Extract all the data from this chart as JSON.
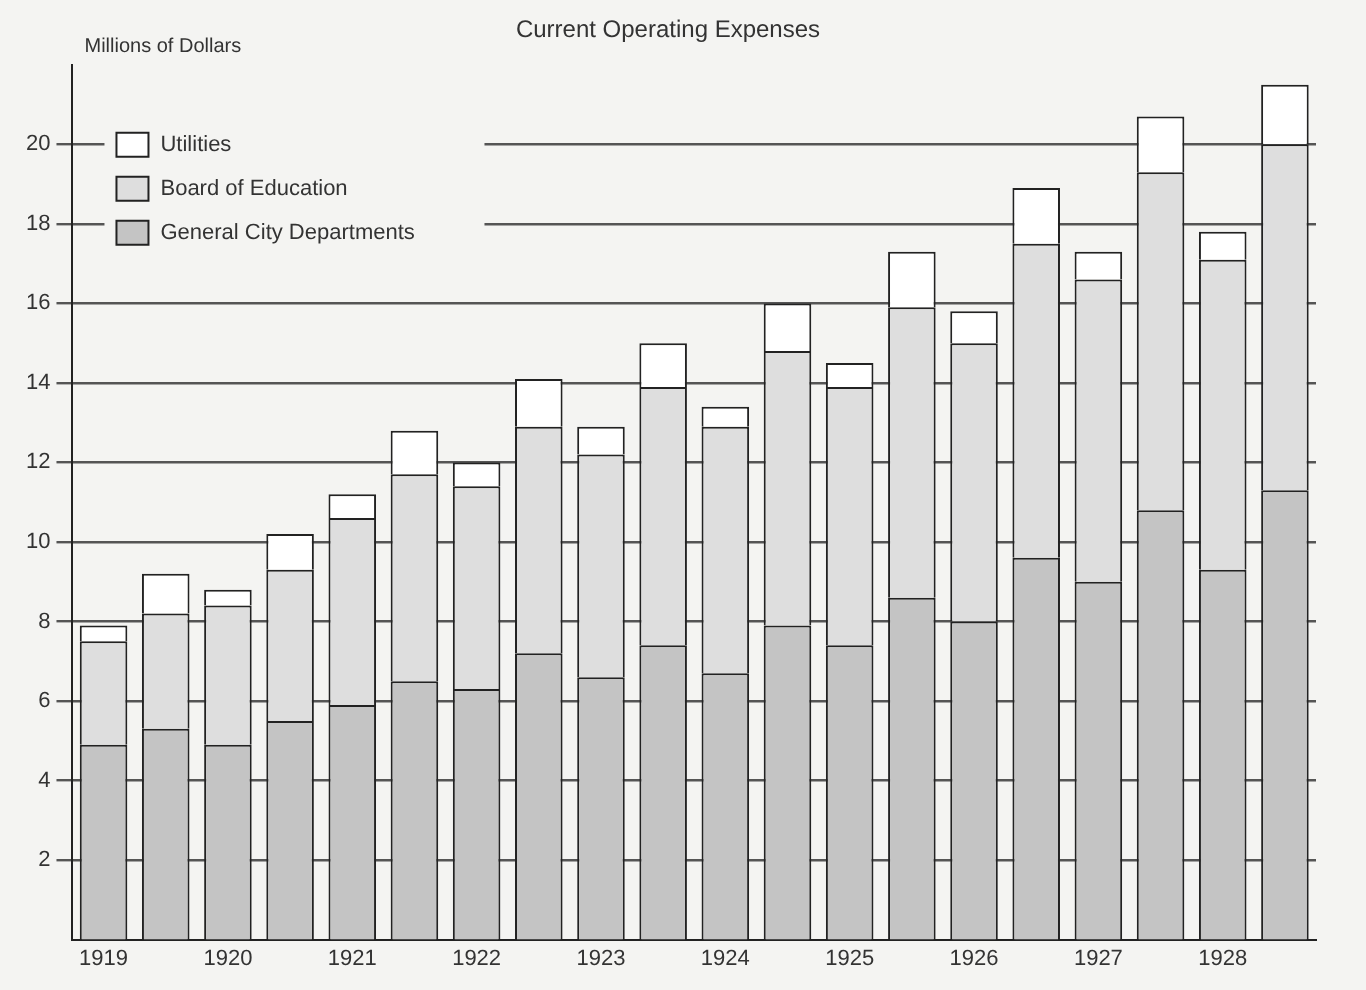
{
  "chart_data": {
    "type": "bar",
    "title": "Current Operating Expenses",
    "ylabel": "Millions of Dollars",
    "categories": [
      "1919",
      null,
      "1920",
      null,
      "1921",
      null,
      "1922",
      null,
      "1923",
      null,
      "1924",
      null,
      "1925",
      null,
      "1926",
      null,
      "1927",
      null,
      "1928",
      null
    ],
    "stacked": true,
    "series": [
      {
        "name": "General City Departments",
        "color": "#c4c4c4",
        "values": [
          4.9,
          5.3,
          4.9,
          5.5,
          5.9,
          6.5,
          6.3,
          7.2,
          6.6,
          7.4,
          6.7,
          7.9,
          7.4,
          8.6,
          8.0,
          9.6,
          9.0,
          10.8,
          9.3,
          11.3
        ]
      },
      {
        "name": "Board of Education",
        "color": "#dedede",
        "values": [
          2.6,
          2.9,
          3.5,
          3.8,
          4.7,
          5.2,
          5.1,
          5.7,
          5.6,
          6.5,
          6.2,
          6.9,
          6.5,
          7.3,
          7.0,
          7.9,
          7.6,
          8.5,
          7.8,
          8.7
        ]
      },
      {
        "name": "Utilities",
        "color": "#ffffff",
        "values": [
          0.4,
          1.0,
          0.4,
          0.9,
          0.6,
          1.1,
          0.6,
          1.2,
          0.7,
          1.1,
          0.5,
          1.2,
          0.6,
          1.4,
          0.8,
          1.4,
          0.7,
          1.4,
          0.7,
          1.5
        ]
      }
    ],
    "ylim": [
      0,
      22
    ],
    "yticks": [
      2,
      4,
      6,
      8,
      10,
      12,
      14,
      16,
      18,
      20
    ],
    "grid": "y",
    "legend": "top left"
  }
}
